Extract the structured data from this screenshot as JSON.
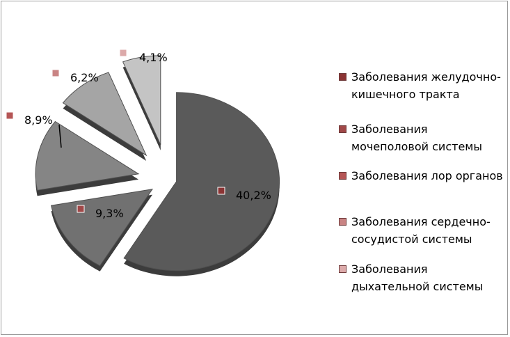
{
  "chart_data": {
    "type": "pie",
    "exploded": true,
    "three_d": true,
    "categories": [
      "Заболевания желудочно-кишечного тракта",
      "Заболевания мочеполовой системы",
      "Заболевания лор органов",
      "Заболевания сердечно-сосудистой системы",
      "Заболевания дыхательной системы"
    ],
    "values": [
      40.2,
      9.3,
      8.9,
      6.2,
      4.1
    ],
    "data_labels": [
      "40,2%",
      "9,3%",
      "8,9%",
      "6,2%",
      "4,1%"
    ],
    "slice_colors": [
      "#5a5a5a",
      "#717171",
      "#858585",
      "#a5a5a5",
      "#c4c4c4"
    ],
    "legend_colors": [
      "#8b3434",
      "#a04848",
      "#b55656",
      "#c98484",
      "#dcaaaa"
    ],
    "legend_placement": "right",
    "title": ""
  }
}
